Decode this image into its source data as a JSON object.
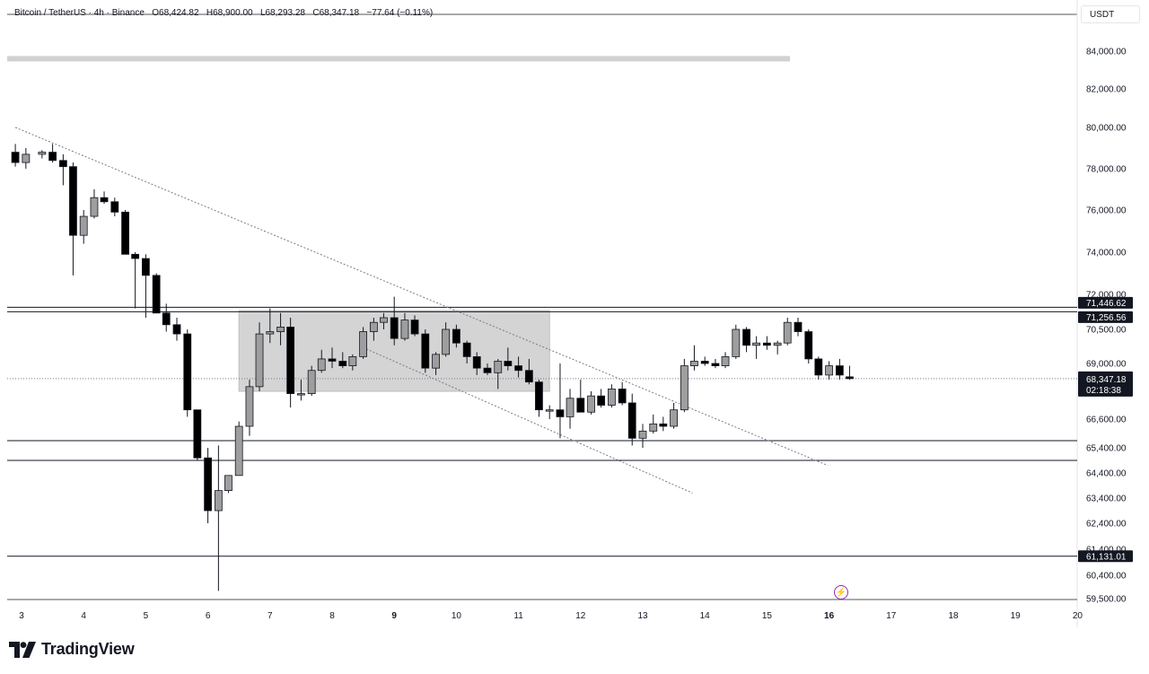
{
  "header": {
    "symbol": "Bitcoin / TetherUS · 4h · Binance",
    "o_label": "O",
    "o_value": "68,424.82",
    "h_label": "H",
    "h_value": "68,900.00",
    "l_label": "L",
    "l_value": "68,293.28",
    "c_label": "C",
    "c_value": "68,347.18",
    "change": "−77.64 (−0.11%)"
  },
  "currency_label": "USDT",
  "branding": {
    "name": "TradingView"
  },
  "price_tag": {
    "price": "68,347.18",
    "countdown": "02:18:38"
  },
  "chart_data": {
    "type": "candlestick",
    "symbol": "Bitcoin / TetherUS",
    "interval": "4h",
    "exchange": "Binance",
    "y_range": [
      59300,
      85700
    ],
    "y_ticks": [
      {
        "v": 84000,
        "label": "84,000.00"
      },
      {
        "v": 82000,
        "label": "82,000.00"
      },
      {
        "v": 80000,
        "label": "80,000.00"
      },
      {
        "v": 78000,
        "label": "78,000.00"
      },
      {
        "v": 76000,
        "label": "76,000.00"
      },
      {
        "v": 74000,
        "label": "74,000.00"
      },
      {
        "v": 72000,
        "label": "72,000.00"
      },
      {
        "v": 70500,
        "label": "70,500.00"
      },
      {
        "v": 69000,
        "label": "69,000.00"
      },
      {
        "v": 66600,
        "label": "66,600.00"
      },
      {
        "v": 65400,
        "label": "65,400.00"
      },
      {
        "v": 64400,
        "label": "64,400.00"
      },
      {
        "v": 63400,
        "label": "63,400.00"
      },
      {
        "v": 62400,
        "label": "62,400.00"
      },
      {
        "v": 61400,
        "label": "61,400.00"
      },
      {
        "v": 60400,
        "label": "60,400.00"
      },
      {
        "v": 59500,
        "label": "59,500.00"
      }
    ],
    "x_ticks": [
      {
        "day": 3,
        "label": "3",
        "bold": false
      },
      {
        "day": 4,
        "label": "4",
        "bold": false
      },
      {
        "day": 5,
        "label": "5",
        "bold": false
      },
      {
        "day": 6,
        "label": "6",
        "bold": false
      },
      {
        "day": 7,
        "label": "7",
        "bold": false
      },
      {
        "day": 8,
        "label": "8",
        "bold": false
      },
      {
        "day": 9,
        "label": "9",
        "bold": true
      },
      {
        "day": 10,
        "label": "10",
        "bold": false
      },
      {
        "day": 11,
        "label": "11",
        "bold": false
      },
      {
        "day": 12,
        "label": "12",
        "bold": false
      },
      {
        "day": 13,
        "label": "13",
        "bold": false
      },
      {
        "day": 14,
        "label": "14",
        "bold": false
      },
      {
        "day": 15,
        "label": "15",
        "bold": false
      },
      {
        "day": 16,
        "label": "16",
        "bold": true
      },
      {
        "day": 17,
        "label": "17",
        "bold": false
      },
      {
        "day": 18,
        "label": "18",
        "bold": false
      },
      {
        "day": 19,
        "label": "19",
        "bold": false
      },
      {
        "day": 20,
        "label": "20",
        "bold": false
      }
    ],
    "candles": [
      {
        "t": 2.9,
        "o": 78800,
        "h": 79200,
        "l": 78100,
        "c": 78300
      },
      {
        "t": 3.07,
        "o": 78300,
        "h": 79000,
        "l": 78000,
        "c": 78700
      },
      {
        "t": 3.33,
        "o": 78700,
        "h": 78900,
        "l": 78500,
        "c": 78800
      },
      {
        "t": 3.5,
        "o": 78800,
        "h": 79200,
        "l": 78300,
        "c": 78400
      },
      {
        "t": 3.67,
        "o": 78400,
        "h": 78700,
        "l": 77200,
        "c": 78100
      },
      {
        "t": 3.83,
        "o": 78100,
        "h": 78300,
        "l": 72900,
        "c": 74800
      },
      {
        "t": 4.0,
        "o": 74800,
        "h": 76000,
        "l": 74400,
        "c": 75700
      },
      {
        "t": 4.17,
        "o": 75700,
        "h": 77000,
        "l": 75600,
        "c": 76600
      },
      {
        "t": 4.33,
        "o": 76600,
        "h": 76900,
        "l": 76300,
        "c": 76400
      },
      {
        "t": 4.5,
        "o": 76400,
        "h": 76600,
        "l": 75700,
        "c": 75900
      },
      {
        "t": 4.67,
        "o": 75900,
        "h": 76000,
        "l": 73900,
        "c": 73900
      },
      {
        "t": 4.83,
        "o": 73900,
        "h": 74000,
        "l": 71400,
        "c": 73700
      },
      {
        "t": 5.0,
        "o": 73700,
        "h": 73900,
        "l": 71000,
        "c": 72900
      },
      {
        "t": 5.17,
        "o": 72900,
        "h": 73000,
        "l": 71200,
        "c": 71200
      },
      {
        "t": 5.33,
        "o": 71200,
        "h": 71600,
        "l": 70400,
        "c": 70700
      },
      {
        "t": 5.5,
        "o": 70700,
        "h": 71000,
        "l": 70000,
        "c": 70300
      },
      {
        "t": 5.67,
        "o": 70300,
        "h": 70500,
        "l": 66700,
        "c": 67000
      },
      {
        "t": 5.83,
        "o": 67000,
        "h": 67000,
        "l": 64900,
        "c": 65000
      },
      {
        "t": 6.0,
        "o": 65000,
        "h": 65400,
        "l": 62400,
        "c": 62900
      },
      {
        "t": 6.17,
        "o": 62900,
        "h": 65500,
        "l": 59800,
        "c": 63700
      },
      {
        "t": 6.33,
        "o": 63700,
        "h": 64300,
        "l": 63600,
        "c": 64300
      },
      {
        "t": 6.5,
        "o": 64300,
        "h": 66500,
        "l": 64300,
        "c": 66300
      },
      {
        "t": 6.67,
        "o": 66300,
        "h": 68300,
        "l": 65900,
        "c": 68000
      },
      {
        "t": 6.83,
        "o": 68000,
        "h": 70800,
        "l": 67800,
        "c": 70300
      },
      {
        "t": 7.0,
        "o": 70300,
        "h": 71400,
        "l": 69900,
        "c": 70400
      },
      {
        "t": 7.17,
        "o": 70400,
        "h": 71200,
        "l": 69800,
        "c": 70600
      },
      {
        "t": 7.33,
        "o": 70600,
        "h": 71000,
        "l": 67100,
        "c": 67700
      },
      {
        "t": 7.5,
        "o": 67700,
        "h": 68300,
        "l": 67400,
        "c": 67700
      },
      {
        "t": 7.67,
        "o": 67700,
        "h": 68900,
        "l": 67600,
        "c": 68700
      },
      {
        "t": 7.83,
        "o": 68700,
        "h": 69600,
        "l": 68600,
        "c": 69200
      },
      {
        "t": 8.0,
        "o": 69200,
        "h": 69700,
        "l": 68800,
        "c": 69100
      },
      {
        "t": 8.17,
        "o": 69100,
        "h": 69500,
        "l": 68800,
        "c": 68900
      },
      {
        "t": 8.33,
        "o": 68900,
        "h": 69400,
        "l": 68700,
        "c": 69300
      },
      {
        "t": 8.5,
        "o": 69300,
        "h": 70600,
        "l": 69200,
        "c": 70400
      },
      {
        "t": 8.67,
        "o": 70400,
        "h": 71000,
        "l": 70000,
        "c": 70800
      },
      {
        "t": 8.83,
        "o": 70800,
        "h": 71200,
        "l": 70500,
        "c": 71000
      },
      {
        "t": 9.0,
        "o": 71000,
        "h": 71900,
        "l": 69800,
        "c": 70100
      },
      {
        "t": 9.17,
        "o": 70100,
        "h": 71200,
        "l": 70000,
        "c": 70900
      },
      {
        "t": 9.33,
        "o": 70900,
        "h": 71100,
        "l": 70200,
        "c": 70300
      },
      {
        "t": 9.5,
        "o": 70300,
        "h": 70500,
        "l": 68600,
        "c": 68800
      },
      {
        "t": 9.67,
        "o": 68800,
        "h": 69500,
        "l": 68500,
        "c": 69400
      },
      {
        "t": 9.83,
        "o": 69400,
        "h": 70800,
        "l": 69300,
        "c": 70500
      },
      {
        "t": 10.0,
        "o": 70500,
        "h": 70700,
        "l": 69700,
        "c": 69900
      },
      {
        "t": 10.17,
        "o": 69900,
        "h": 70000,
        "l": 69000,
        "c": 69300
      },
      {
        "t": 10.33,
        "o": 69300,
        "h": 69500,
        "l": 68500,
        "c": 68800
      },
      {
        "t": 10.5,
        "o": 68800,
        "h": 69000,
        "l": 68500,
        "c": 68600
      },
      {
        "t": 10.67,
        "o": 68600,
        "h": 69200,
        "l": 67900,
        "c": 69100
      },
      {
        "t": 10.83,
        "o": 69100,
        "h": 69700,
        "l": 68700,
        "c": 68900
      },
      {
        "t": 11.0,
        "o": 68900,
        "h": 69300,
        "l": 68400,
        "c": 68700
      },
      {
        "t": 11.17,
        "o": 68700,
        "h": 69200,
        "l": 68100,
        "c": 68200
      },
      {
        "t": 11.33,
        "o": 68200,
        "h": 68300,
        "l": 66700,
        "c": 67000
      },
      {
        "t": 11.5,
        "o": 67000,
        "h": 67200,
        "l": 66600,
        "c": 67000
      },
      {
        "t": 11.67,
        "o": 67000,
        "h": 69000,
        "l": 65800,
        "c": 66700
      },
      {
        "t": 11.83,
        "o": 66700,
        "h": 67900,
        "l": 66200,
        "c": 67500
      },
      {
        "t": 12.0,
        "o": 67500,
        "h": 68300,
        "l": 67000,
        "c": 66900
      },
      {
        "t": 12.17,
        "o": 66900,
        "h": 67800,
        "l": 66800,
        "c": 67600
      },
      {
        "t": 12.33,
        "o": 67600,
        "h": 67900,
        "l": 67100,
        "c": 67200
      },
      {
        "t": 12.5,
        "o": 67200,
        "h": 68100,
        "l": 67100,
        "c": 67900
      },
      {
        "t": 12.67,
        "o": 67900,
        "h": 68200,
        "l": 67200,
        "c": 67300
      },
      {
        "t": 12.83,
        "o": 67300,
        "h": 67700,
        "l": 65500,
        "c": 65800
      },
      {
        "t": 13.0,
        "o": 65800,
        "h": 66400,
        "l": 65400,
        "c": 66100
      },
      {
        "t": 13.17,
        "o": 66100,
        "h": 66800,
        "l": 66000,
        "c": 66400
      },
      {
        "t": 13.33,
        "o": 66400,
        "h": 66700,
        "l": 66100,
        "c": 66300
      },
      {
        "t": 13.5,
        "o": 66300,
        "h": 67300,
        "l": 66200,
        "c": 67000
      },
      {
        "t": 13.67,
        "o": 67000,
        "h": 69200,
        "l": 66900,
        "c": 68900
      },
      {
        "t": 13.83,
        "o": 68900,
        "h": 69800,
        "l": 68700,
        "c": 69100
      },
      {
        "t": 14.0,
        "o": 69100,
        "h": 69300,
        "l": 68900,
        "c": 69000
      },
      {
        "t": 14.17,
        "o": 69000,
        "h": 69200,
        "l": 68800,
        "c": 68900
      },
      {
        "t": 14.33,
        "o": 68900,
        "h": 69500,
        "l": 68800,
        "c": 69300
      },
      {
        "t": 14.5,
        "o": 69300,
        "h": 70700,
        "l": 69200,
        "c": 70500
      },
      {
        "t": 14.67,
        "o": 70500,
        "h": 70600,
        "l": 69500,
        "c": 69800
      },
      {
        "t": 14.83,
        "o": 69800,
        "h": 70200,
        "l": 69200,
        "c": 69900
      },
      {
        "t": 15.0,
        "o": 69900,
        "h": 70200,
        "l": 69600,
        "c": 69800
      },
      {
        "t": 15.17,
        "o": 69800,
        "h": 70000,
        "l": 69400,
        "c": 69900
      },
      {
        "t": 15.33,
        "o": 69900,
        "h": 71000,
        "l": 69800,
        "c": 70800
      },
      {
        "t": 15.5,
        "o": 70800,
        "h": 71000,
        "l": 70200,
        "c": 70400
      },
      {
        "t": 15.67,
        "o": 70400,
        "h": 70500,
        "l": 69000,
        "c": 69200
      },
      {
        "t": 15.83,
        "o": 69200,
        "h": 69300,
        "l": 68300,
        "c": 68500
      },
      {
        "t": 16.0,
        "o": 68500,
        "h": 69100,
        "l": 68300,
        "c": 68900
      },
      {
        "t": 16.17,
        "o": 68900,
        "h": 69200,
        "l": 68300,
        "c": 68500
      },
      {
        "t": 16.33,
        "o": 68424.82,
        "h": 68900,
        "l": 68293.28,
        "c": 68347.18
      }
    ],
    "horizontal_levels": [
      {
        "price": 71446.62,
        "label": "71,446.62",
        "tag": true
      },
      {
        "price": 71256.56,
        "label": "71,256.56",
        "tag": true
      },
      {
        "price": 61131.01,
        "label": "61,131.01",
        "tag": true
      },
      {
        "price": 65700,
        "label": "",
        "tag": false
      },
      {
        "price": 64900,
        "label": "",
        "tag": false
      }
    ],
    "last_price": 68347.18,
    "top_zone": {
      "price": 83600
    },
    "consolidation_box": {
      "t1": 6.5,
      "t2": 11.5,
      "p1": 71300,
      "p2": 67800
    },
    "trendline": {
      "t1": 2.9,
      "p1": 80000,
      "t2": 15.98,
      "p2": 64700
    },
    "channel_line": {
      "t1": 8.5,
      "p1": 69700,
      "t2": 13.8,
      "p2": 63600
    }
  }
}
